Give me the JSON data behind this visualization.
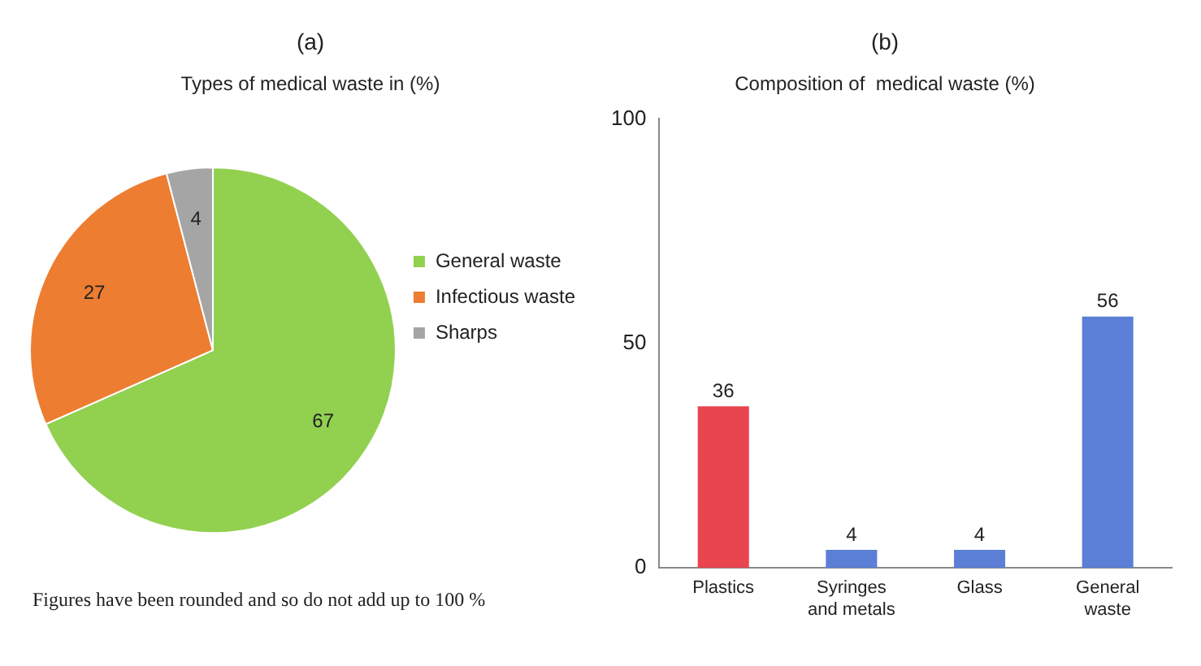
{
  "chart_data": [
    {
      "type": "pie",
      "title": "(a)",
      "subtitle": "Types of medical waste in (%)",
      "categories": [
        "General waste",
        "Infectious waste",
        "Sharps"
      ],
      "values": [
        67,
        27,
        4
      ],
      "colors": [
        "#92d050",
        "#ed7d31",
        "#a5a5a5"
      ],
      "data_labels": true,
      "legend": "right",
      "annotations": [
        "Figures have been rounded and so do not add up to 100 %"
      ]
    },
    {
      "type": "bar",
      "title": "(b)",
      "subtitle": "Composition of  medical waste (%)",
      "categories": [
        "Plastics",
        "Syringes and metals",
        "Glass",
        "General waste"
      ],
      "values": [
        36,
        4,
        4,
        56
      ],
      "colors": [
        "#e8454f",
        "#5b7fd6",
        "#5b7fd6",
        "#5b7fd6"
      ],
      "ylim": [
        0,
        100
      ],
      "yticks": [
        0,
        50,
        100
      ],
      "grid": false,
      "data_labels": true,
      "legend": false
    }
  ]
}
